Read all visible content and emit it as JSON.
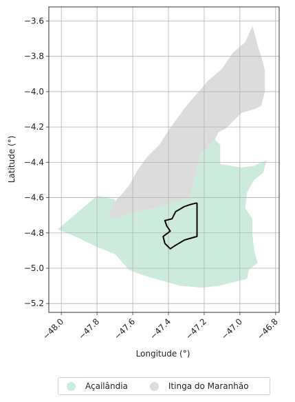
{
  "chart_data": {
    "type": "map",
    "xlabel": "Longitude (°)",
    "ylabel": "Latitude (°)",
    "xlim": [
      -48.07,
      -46.78
    ],
    "ylim": [
      -5.25,
      -3.52
    ],
    "xticks": [
      -48.0,
      -47.8,
      -47.6,
      -47.4,
      -47.2,
      -47.0,
      -46.8
    ],
    "xtick_labels": [
      "−48.0",
      "−47.8",
      "−47.6",
      "−47.4",
      "−47.2",
      "−47.0",
      "−46.8"
    ],
    "yticks": [
      -3.6,
      -3.8,
      -4.0,
      -4.2,
      -4.4,
      -4.6,
      -4.8,
      -5.0,
      -5.2
    ],
    "ytick_labels": [
      "−3.6",
      "−3.8",
      "−4.0",
      "−4.2",
      "−4.4",
      "−4.6",
      "−4.8",
      "−5.0",
      "−5.2"
    ],
    "grid": true,
    "legend_position": "bottom-center",
    "regions": [
      {
        "name": "Açailândia",
        "color": "#cdebdd",
        "polygon": [
          [
            -48.02,
            -4.78
          ],
          [
            -47.8,
            -4.59
          ],
          [
            -47.7,
            -4.61
          ],
          [
            -47.68,
            -4.71
          ],
          [
            -47.58,
            -4.68
          ],
          [
            -47.48,
            -4.66
          ],
          [
            -47.35,
            -4.62
          ],
          [
            -47.28,
            -4.6
          ],
          [
            -47.24,
            -4.43
          ],
          [
            -47.22,
            -4.35
          ],
          [
            -47.18,
            -4.32
          ],
          [
            -47.14,
            -4.27
          ],
          [
            -47.11,
            -4.3
          ],
          [
            -47.11,
            -4.41
          ],
          [
            -47.05,
            -4.42
          ],
          [
            -46.99,
            -4.43
          ],
          [
            -46.92,
            -4.42
          ],
          [
            -46.88,
            -4.4
          ],
          [
            -46.85,
            -4.39
          ],
          [
            -46.87,
            -4.46
          ],
          [
            -46.92,
            -4.5
          ],
          [
            -46.96,
            -4.57
          ],
          [
            -46.97,
            -4.66
          ],
          [
            -46.93,
            -4.72
          ],
          [
            -46.93,
            -4.8
          ],
          [
            -46.92,
            -4.9
          ],
          [
            -46.9,
            -4.97
          ],
          [
            -46.95,
            -5.01
          ],
          [
            -46.96,
            -5.06
          ],
          [
            -47.04,
            -5.08
          ],
          [
            -47.12,
            -5.1
          ],
          [
            -47.21,
            -5.11
          ],
          [
            -47.33,
            -5.1
          ],
          [
            -47.44,
            -5.07
          ],
          [
            -47.54,
            -5.04
          ],
          [
            -47.62,
            -5.01
          ],
          [
            -47.7,
            -4.92
          ],
          [
            -47.8,
            -4.88
          ],
          [
            -47.9,
            -4.83
          ]
        ]
      },
      {
        "name": "Itinga do Maranhão",
        "color": "#dcdcdc",
        "polygon": [
          [
            -47.74,
            -4.71
          ],
          [
            -47.69,
            -4.61
          ],
          [
            -47.66,
            -4.58
          ],
          [
            -47.62,
            -4.53
          ],
          [
            -47.57,
            -4.44
          ],
          [
            -47.52,
            -4.37
          ],
          [
            -47.45,
            -4.3
          ],
          [
            -47.4,
            -4.22
          ],
          [
            -47.35,
            -4.15
          ],
          [
            -47.3,
            -4.08
          ],
          [
            -47.23,
            -4.0
          ],
          [
            -47.18,
            -3.94
          ],
          [
            -47.1,
            -3.87
          ],
          [
            -47.04,
            -3.78
          ],
          [
            -46.97,
            -3.72
          ],
          [
            -46.93,
            -3.63
          ],
          [
            -46.94,
            -3.6
          ],
          [
            -46.92,
            -3.66
          ],
          [
            -46.9,
            -3.74
          ],
          [
            -46.88,
            -3.8
          ],
          [
            -46.86,
            -3.88
          ],
          [
            -46.86,
            -4.0
          ],
          [
            -46.88,
            -4.08
          ],
          [
            -46.92,
            -4.1
          ],
          [
            -46.99,
            -4.12
          ],
          [
            -47.04,
            -4.17
          ],
          [
            -47.08,
            -4.21
          ],
          [
            -47.12,
            -4.23
          ],
          [
            -47.14,
            -4.27
          ],
          [
            -47.18,
            -4.32
          ],
          [
            -47.22,
            -4.35
          ],
          [
            -47.24,
            -4.43
          ],
          [
            -47.28,
            -4.6
          ],
          [
            -47.35,
            -4.62
          ],
          [
            -47.48,
            -4.66
          ],
          [
            -47.58,
            -4.68
          ],
          [
            -47.68,
            -4.71
          ]
        ]
      }
    ],
    "outline": {
      "color": "#000000",
      "polyline": [
        [
          -47.24,
          -4.63
        ],
        [
          -47.24,
          -4.82
        ],
        [
          -47.31,
          -4.84
        ],
        [
          -47.36,
          -4.87
        ],
        [
          -47.39,
          -4.89
        ],
        [
          -47.42,
          -4.86
        ],
        [
          -47.43,
          -4.82
        ],
        [
          -47.39,
          -4.79
        ],
        [
          -47.41,
          -4.76
        ],
        [
          -47.42,
          -4.73
        ],
        [
          -47.38,
          -4.72
        ],
        [
          -47.36,
          -4.68
        ],
        [
          -47.31,
          -4.65
        ],
        [
          -47.28,
          -4.64
        ],
        [
          -47.24,
          -4.63
        ]
      ]
    }
  },
  "legend": {
    "items": [
      {
        "label": "Açailândia",
        "color": "#cdebdd"
      },
      {
        "label": "Itinga do Maranhão",
        "color": "#dcdcdc"
      }
    ]
  }
}
